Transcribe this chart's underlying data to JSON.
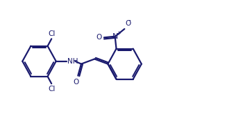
{
  "bg_color": "#ffffff",
  "line_color": "#1a1a6e",
  "line_width": 1.6,
  "font_size": 7.5,
  "figsize": [
    3.27,
    1.84
  ],
  "dpi": 100,
  "xlim": [
    0,
    10.5
  ],
  "ylim": [
    0,
    5.6
  ]
}
